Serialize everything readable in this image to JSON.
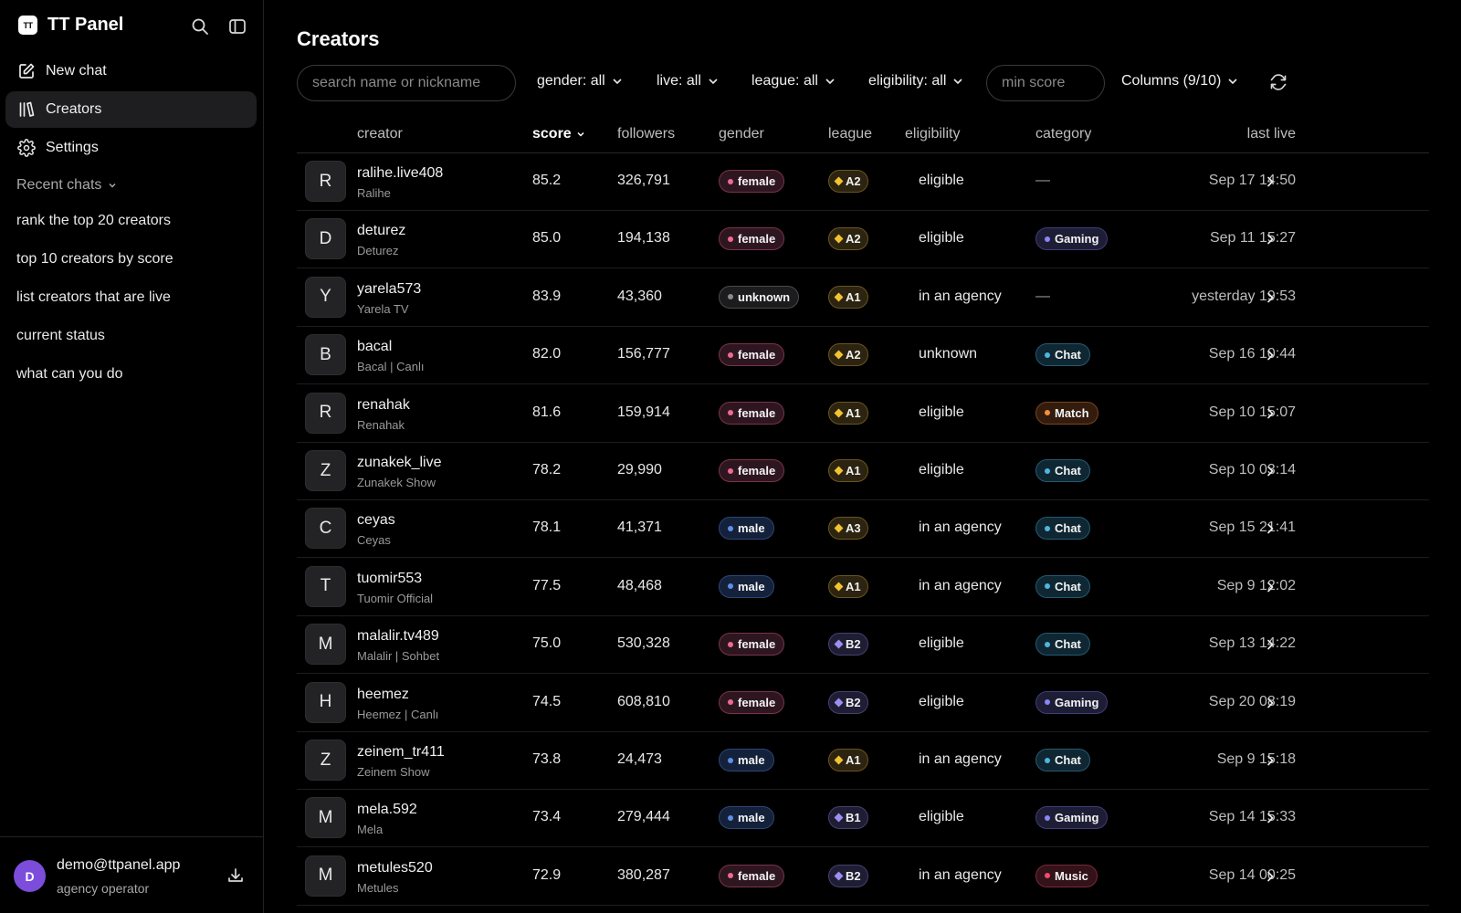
{
  "app": {
    "logo_text": "TT",
    "name": "TT Panel"
  },
  "sidebar": {
    "nav": [
      {
        "label": "New chat",
        "icon": "edit-icon"
      },
      {
        "label": "Creators",
        "icon": "library-icon",
        "active": true
      },
      {
        "label": "Settings",
        "icon": "gear-icon"
      }
    ],
    "recent_header": "Recent chats",
    "recent": [
      "rank the top 20 creators",
      "top 10 creators by score",
      "list creators that are live",
      "current status",
      "what can you do"
    ],
    "user": {
      "initial": "D",
      "email": "demo@ttpanel.app",
      "role": "agency operator"
    }
  },
  "main": {
    "title": "Creators",
    "search_placeholder": "search name or nickname",
    "filters": {
      "gender": "gender: all",
      "live": "live: all",
      "league": "league: all",
      "eligibility": "eligibility: all"
    },
    "min_score_placeholder": "min score",
    "columns_label": "Columns (9/10)",
    "headers": {
      "creator": "creator",
      "score": "score",
      "followers": "followers",
      "gender": "gender",
      "league": "league",
      "eligibility": "eligibility",
      "category": "category",
      "last_live": "last live"
    },
    "rows": [
      {
        "initial": "R",
        "name": "ralihe.live408",
        "nick": "Ralihe",
        "score": "85.2",
        "followers": "326,791",
        "gender": "female",
        "league": "A2",
        "eligibility": "eligible",
        "category": "—",
        "last_live": "Sep 17 14:50"
      },
      {
        "initial": "D",
        "name": "deturez",
        "nick": "Deturez",
        "score": "85.0",
        "followers": "194,138",
        "gender": "female",
        "league": "A2",
        "eligibility": "eligible",
        "category": "Gaming",
        "last_live": "Sep 11 15:27"
      },
      {
        "initial": "Y",
        "name": "yarela573",
        "nick": "Yarela TV",
        "score": "83.9",
        "followers": "43,360",
        "gender": "unknown",
        "league": "A1",
        "eligibility": "in an agency",
        "category": "—",
        "last_live": "yesterday 19:53"
      },
      {
        "initial": "B",
        "name": "bacal",
        "nick": "Bacal | Canlı",
        "score": "82.0",
        "followers": "156,777",
        "gender": "female",
        "league": "A2",
        "eligibility": "unknown",
        "category": "Chat",
        "last_live": "Sep 16 10:44"
      },
      {
        "initial": "R",
        "name": "renahak",
        "nick": "Renahak",
        "score": "81.6",
        "followers": "159,914",
        "gender": "female",
        "league": "A1",
        "eligibility": "eligible",
        "category": "Match",
        "last_live": "Sep 10 15:07"
      },
      {
        "initial": "Z",
        "name": "zunakek_live",
        "nick": "Zunakek Show",
        "score": "78.2",
        "followers": "29,990",
        "gender": "female",
        "league": "A1",
        "eligibility": "eligible",
        "category": "Chat",
        "last_live": "Sep 10 03:14"
      },
      {
        "initial": "C",
        "name": "ceyas",
        "nick": "Ceyas",
        "score": "78.1",
        "followers": "41,371",
        "gender": "male",
        "league": "A3",
        "eligibility": "in an agency",
        "category": "Chat",
        "last_live": "Sep 15 21:41"
      },
      {
        "initial": "T",
        "name": "tuomir553",
        "nick": "Tuomir Official",
        "score": "77.5",
        "followers": "48,468",
        "gender": "male",
        "league": "A1",
        "eligibility": "in an agency",
        "category": "Chat",
        "last_live": "Sep 9 12:02"
      },
      {
        "initial": "M",
        "name": "malalir.tv489",
        "nick": "Malalir | Sohbet",
        "score": "75.0",
        "followers": "530,328",
        "gender": "female",
        "league": "B2",
        "eligibility": "eligible",
        "category": "Chat",
        "last_live": "Sep 13 14:22"
      },
      {
        "initial": "H",
        "name": "heemez",
        "nick": "Heemez | Canlı",
        "score": "74.5",
        "followers": "608,810",
        "gender": "female",
        "league": "B2",
        "eligibility": "eligible",
        "category": "Gaming",
        "last_live": "Sep 20 08:19"
      },
      {
        "initial": "Z",
        "name": "zeinem_tr411",
        "nick": "Zeinem Show",
        "score": "73.8",
        "followers": "24,473",
        "gender": "male",
        "league": "A1",
        "eligibility": "in an agency",
        "category": "Chat",
        "last_live": "Sep 9 15:18"
      },
      {
        "initial": "M",
        "name": "mela.592",
        "nick": "Mela",
        "score": "73.4",
        "followers": "279,444",
        "gender": "male",
        "league": "B1",
        "eligibility": "eligible",
        "category": "Gaming",
        "last_live": "Sep 14 15:33"
      },
      {
        "initial": "M",
        "name": "metules520",
        "nick": "Metules",
        "score": "72.9",
        "followers": "380,287",
        "gender": "female",
        "league": "B2",
        "eligibility": "in an agency",
        "category": "Music",
        "last_live": "Sep 14 00:25"
      }
    ]
  },
  "colors": {
    "accent_avatar": "#7c4ddb",
    "female": "#ef6b8f",
    "male": "#5e8ee8",
    "league_a": "#f1c232",
    "league_b": "#9d8ef2",
    "chat": "#4fb5e0",
    "gaming": "#8b86f5",
    "match": "#f3913d",
    "music": "#ef4d6a"
  }
}
